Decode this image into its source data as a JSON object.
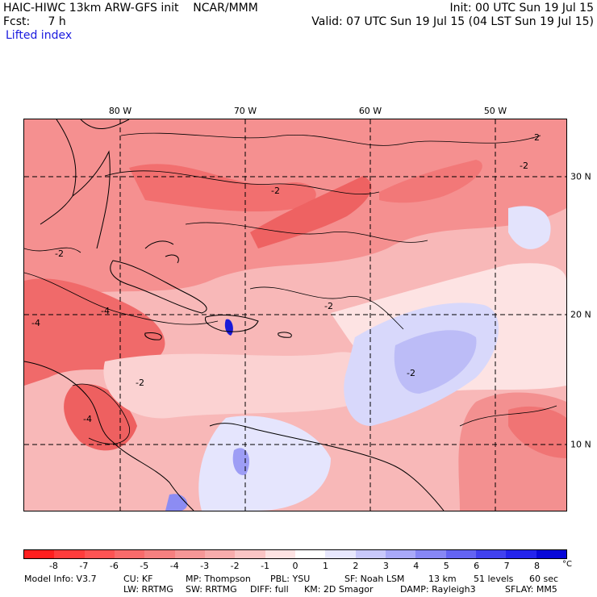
{
  "header": {
    "model_title": "HAIC-HIWC 13km ARW-GFS init    NCAR/MMM",
    "forecast": "Fcst:     7 h",
    "field_name": "Lifted index",
    "init": "Init: 00 UTC Sun 19 Jul 15",
    "valid": "Valid: 07 UTC Sun 19 Jul 15 (04 LST Sun 19 Jul 15)"
  },
  "map": {
    "longitude_labels": [
      "80 W",
      "70 W",
      "60 W",
      "50 W"
    ],
    "latitude_labels": [
      "30 N",
      "20 N",
      "10 N"
    ],
    "contour_labels": [
      "-2",
      "-2",
      "-2",
      "-2",
      "-2",
      "-4",
      "-4",
      "-4",
      "-2",
      "-2"
    ]
  },
  "colorbar": {
    "ticks": [
      "-8",
      "-7",
      "-6",
      "-5",
      "-4",
      "-3",
      "-2",
      "-1",
      "0",
      "1",
      "2",
      "3",
      "4",
      "5",
      "6",
      "7",
      "8"
    ],
    "unit": "°C",
    "colors": [
      "#ff1f1f",
      "#ff3c3c",
      "#fd5353",
      "#f86b6b",
      "#f58080",
      "#f59797",
      "#f7acac",
      "#fac5c5",
      "#fde3e3",
      "#ffffff",
      "#e7e7fd",
      "#c8c8fb",
      "#a9a9f8",
      "#8787f5",
      "#6464f3",
      "#4141ef",
      "#2424ec",
      "#0808d8"
    ]
  },
  "footer": {
    "line1": [
      "Model Info: V3.7",
      "CU: KF",
      "MP: Thompson",
      "PBL: YSU",
      "SF: Noah LSM",
      "13 km",
      "51 levels",
      "60 sec"
    ],
    "line2": [
      "LW: RRTMG",
      "SW: RRTMG",
      "DIFF: full",
      "KM: 2D Smagor",
      "DAMP: Rayleigh3",
      "SFLAY: MM5"
    ]
  }
}
